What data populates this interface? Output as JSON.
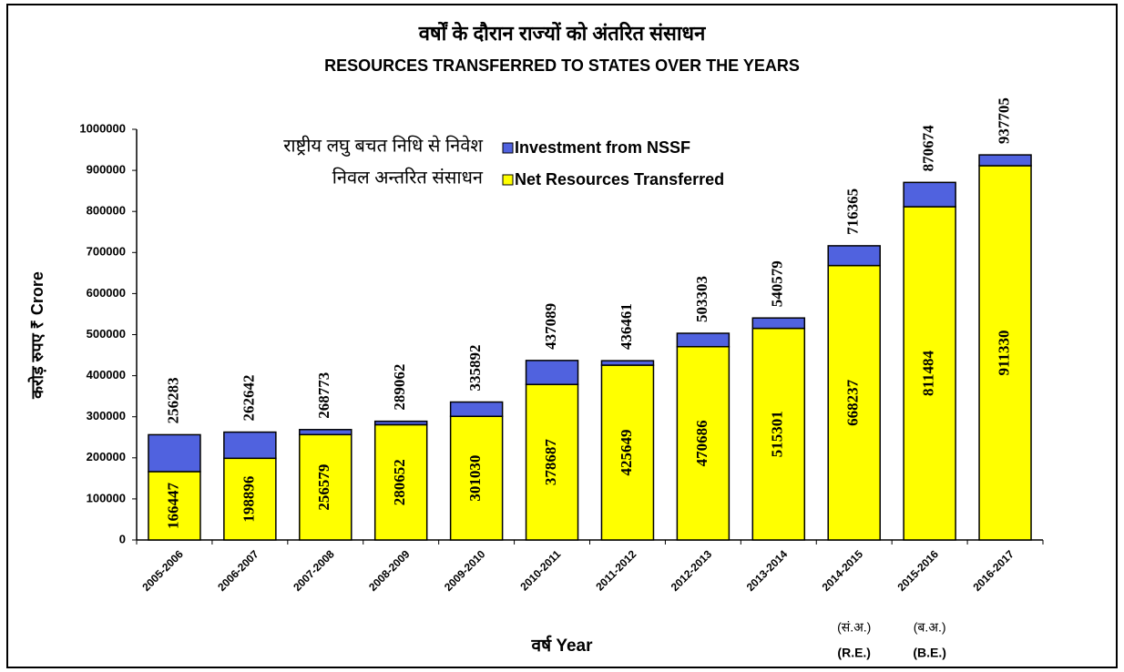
{
  "chart_data": {
    "type": "stacked_bar",
    "title_hi": "वर्षों के दौरान राज्यों को अंतरित संसाधन",
    "title": "RESOURCES TRANSFERRED TO STATES OVER THE YEARS",
    "y_label": "करोड़ रुपए ₹ Crore",
    "x_label": "वर्ष Year",
    "categories": [
      "2005-2006",
      "2006-2007",
      "2007-2008",
      "2008-2009",
      "2009-2010",
      "2010-2011",
      "2011-2012",
      "2012-2013",
      "2013-2014",
      "2014-2015",
      "2015-2016",
      "2016-2017"
    ],
    "series": [
      {
        "name": "Investment from NSSF",
        "name_hi": "राष्ट्रीय लघु बचत निधि से निवेश",
        "color": "#5062df",
        "values": [
          89836,
          63746,
          12194,
          8410,
          34862,
          58402,
          10812,
          32617,
          25278,
          48128,
          59190,
          26375
        ]
      },
      {
        "name": "Net Resources Transferred",
        "name_hi": "निवल अन्तरित संसाधन",
        "color": "#ffff00",
        "values": [
          166447,
          198896,
          256579,
          280652,
          301030,
          378687,
          425649,
          470686,
          515301,
          668237,
          811484,
          911330
        ]
      }
    ],
    "totals": [
      256283,
      262642,
      268773,
      289062,
      335892,
      437089,
      436461,
      503303,
      540579,
      716365,
      870674,
      937705
    ],
    "annotations": [
      {
        "category": 9,
        "hi": "(सं.अ.)",
        "en": "(R.E.)"
      },
      {
        "category": 10,
        "hi": "(ब.अ.)",
        "en": "(B.E.)"
      }
    ],
    "ylim": [
      0,
      1000000
    ],
    "yticks": [
      0,
      100000,
      200000,
      300000,
      400000,
      500000,
      600000,
      700000,
      800000,
      900000,
      1000000
    ]
  }
}
